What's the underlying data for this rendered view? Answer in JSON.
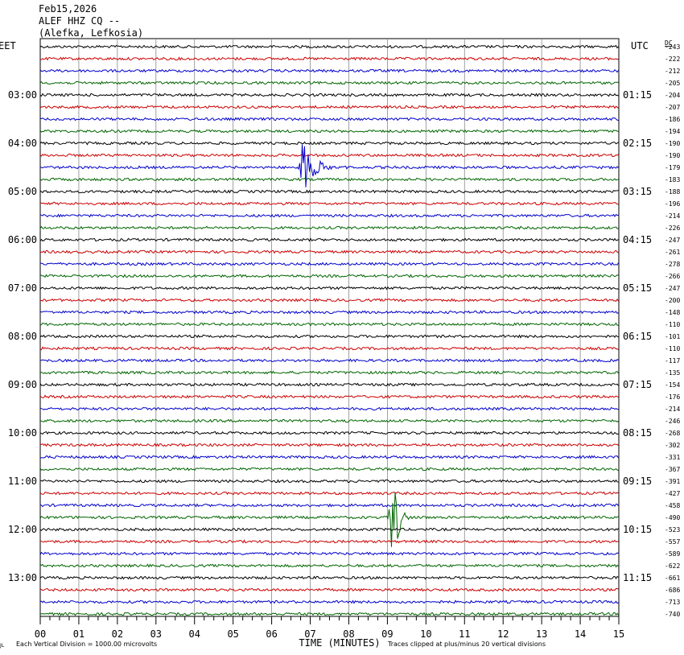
{
  "header": {
    "date": "Feb15,2026",
    "station": "ALEF HHZ CQ --",
    "location": "(Alefka, Lefkosia)"
  },
  "left_zone": "EET",
  "right_zone": "UTC",
  "dc_label": "DC",
  "footer": {
    "x_title": "TIME (MINUTES)",
    "scale_note": "Each Vertical Division = 1000.00 microvolts",
    "clip_note": "Traces clipped at plus/minus 20 vertical divisions",
    "corner_mark": "JL"
  },
  "colors": [
    "#000000",
    "#cc0000",
    "#0000cc",
    "#006600"
  ],
  "chart_data": {
    "type": "line",
    "title": "ALEF HHZ CQ --",
    "xlabel": "TIME (MINUTES)",
    "ylabel": "",
    "x_ticks": [
      "00",
      "01",
      "02",
      "03",
      "04",
      "05",
      "06",
      "07",
      "08",
      "09",
      "10",
      "11",
      "12",
      "13",
      "14",
      "15"
    ],
    "xlim": [
      0,
      15
    ],
    "grid": true,
    "left_hour_labels": [
      "03:00",
      "04:00",
      "05:00",
      "06:00",
      "07:00",
      "08:00",
      "09:00",
      "10:00",
      "11:00",
      "12:00",
      "13:00"
    ],
    "right_hour_labels": [
      "01:15",
      "02:15",
      "03:15",
      "04:15",
      "05:15",
      "06:15",
      "07:15",
      "08:15",
      "09:15",
      "10:15",
      "11:15"
    ],
    "dc_offsets": [
      "-243",
      "-222",
      "-212",
      "-205",
      "-204",
      "-207",
      "-186",
      "-194",
      "-190",
      "-190",
      "-179",
      "-183",
      "-188",
      "-196",
      "-214",
      "-226",
      "-247",
      "-261",
      "-278",
      "-266",
      "-247",
      "-200",
      "-148",
      "-110",
      "-101",
      "-110",
      "-117",
      "-135",
      "-154",
      "-176",
      "-214",
      "-246",
      "-268",
      "-302",
      "-331",
      "-367",
      "-391",
      "-427",
      "-458",
      "-490",
      "-523",
      "-557",
      "-589",
      "-622",
      "-661",
      "-686",
      "-713",
      "-740"
    ],
    "events": [
      {
        "trace_index": 10,
        "minute": 6.8,
        "peak_divisions": 2.2
      },
      {
        "trace_index": 39,
        "minute": 9.15,
        "peak_divisions": 4.5
      }
    ]
  }
}
